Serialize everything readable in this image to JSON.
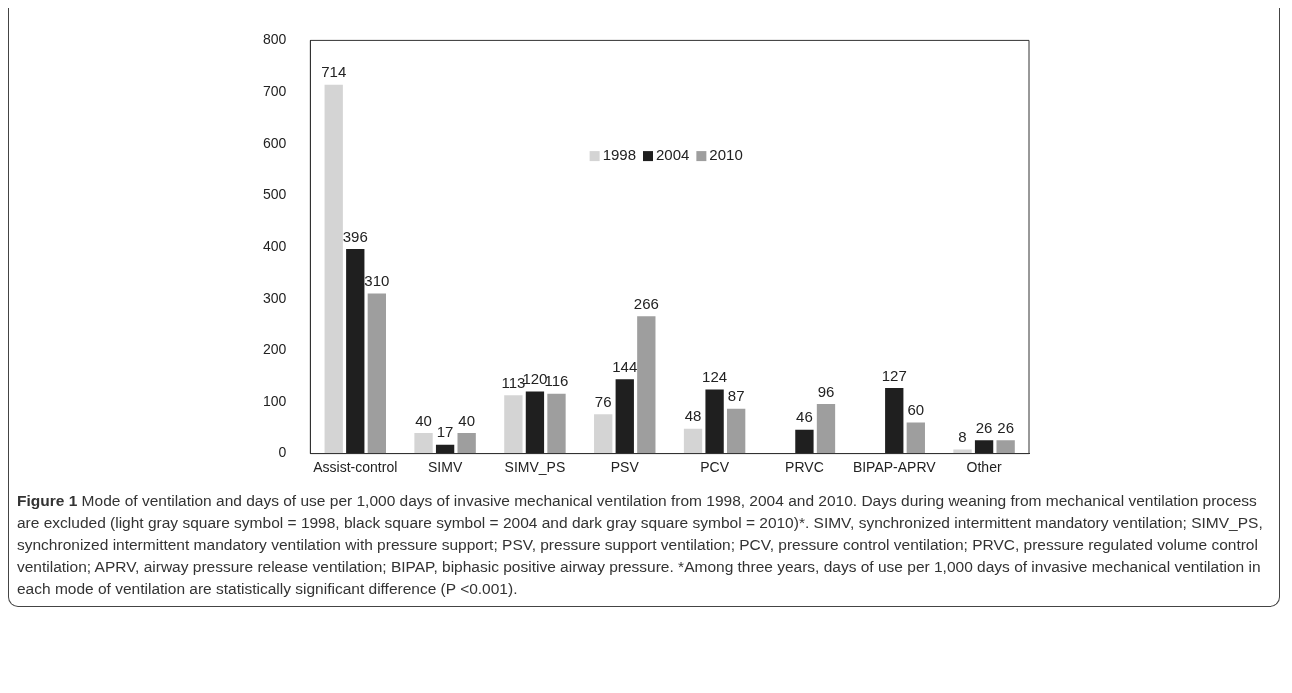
{
  "chart_data": {
    "type": "bar",
    "categories": [
      "Assist-control",
      "SIMV",
      "SIMV_PS",
      "PSV",
      "PCV",
      "PRVC",
      "BIPAP-APRV",
      "Other"
    ],
    "series": [
      {
        "name": "1998",
        "color": "#d4d4d4",
        "values": [
          714,
          40,
          113,
          76,
          48,
          null,
          null,
          8
        ]
      },
      {
        "name": "2004",
        "color": "#1f1f1f",
        "values": [
          396,
          17,
          120,
          144,
          124,
          46,
          127,
          26
        ]
      },
      {
        "name": "2010",
        "color": "#9e9e9e",
        "values": [
          310,
          40,
          116,
          266,
          87,
          96,
          60,
          26
        ]
      }
    ],
    "ylim": [
      0,
      800
    ],
    "yticks": [
      0,
      100,
      200,
      300,
      400,
      500,
      600,
      700,
      800
    ],
    "grid": false,
    "legend": "top",
    "data_labels": true,
    "annotations": [
      "Figure 1",
      "Mode of ventilation and days of use per 1,000 days of invasive mechanical ventilation from 1998, 2004 and 2010. Days during weaning from mechanical ventilation process are excluded (light gray square symbol = 1998, black square symbol = 2004 and dark gray square symbol = 2010)*. SIMV, synchronized intermittent mandatory ventilation; SIMV_PS, synchronized intermittent mandatory ventilation with pressure support; PSV, pressure support ventilation; PCV, pressure control ventilation; PRVC, pressure regulated volume control ventilation; APRV, airway pressure release ventilation; BIPAP, biphasic positive airway pressure. *Among three years, days of use per 1,000 days of invasive mechanical ventilation in each mode of ventilation are statistically significant difference (P <0.001)."
    ]
  }
}
